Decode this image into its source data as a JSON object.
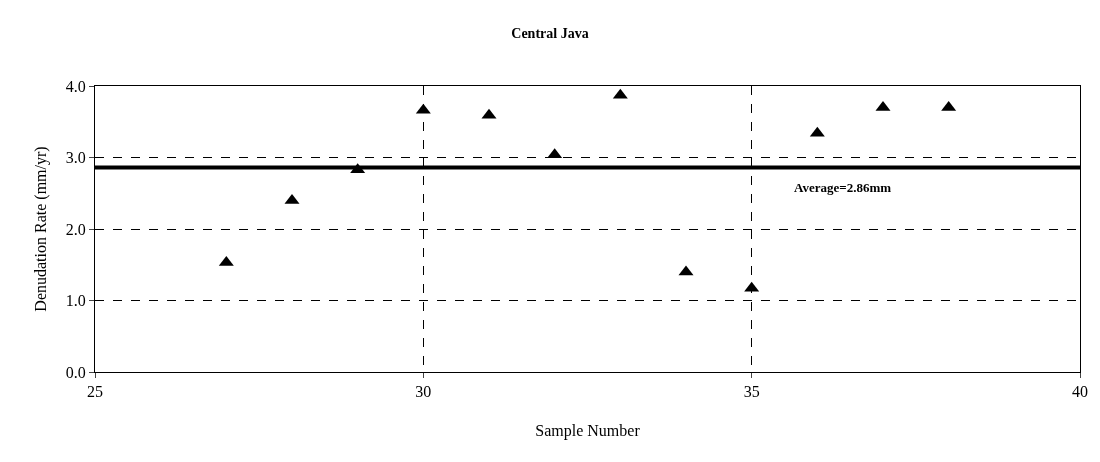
{
  "chart_data": {
    "type": "scatter",
    "title": "Central Java",
    "xlabel": "Sample Number",
    "ylabel": "Denudation Rate (mm/yr)",
    "x": [
      27,
      28,
      29,
      30,
      31,
      32,
      33,
      34,
      35,
      36,
      37,
      38
    ],
    "series": [
      {
        "color": "#000000",
        "values": [
          1.53,
          2.4,
          2.83,
          3.66,
          3.59,
          3.04,
          3.87,
          1.4,
          1.17,
          3.34,
          3.7,
          3.7
        ]
      }
    ],
    "xlim": [
      25,
      40
    ],
    "xticks": [
      25,
      30,
      35,
      40
    ],
    "ylim": [
      0,
      4
    ],
    "yticks": [
      {
        "value": 0,
        "label": "0.0"
      },
      {
        "value": 1,
        "label": "1.0"
      },
      {
        "value": 2,
        "label": "2.0"
      },
      {
        "value": 3,
        "label": "3.0"
      },
      {
        "value": 4,
        "label": "4.0"
      }
    ],
    "ref_lines": [
      {
        "axis": "y",
        "value": 2.86,
        "label": "Average=2.86mm",
        "color": "#000000",
        "line_style": "solid"
      }
    ],
    "grid": true,
    "marker": "triangle"
  }
}
